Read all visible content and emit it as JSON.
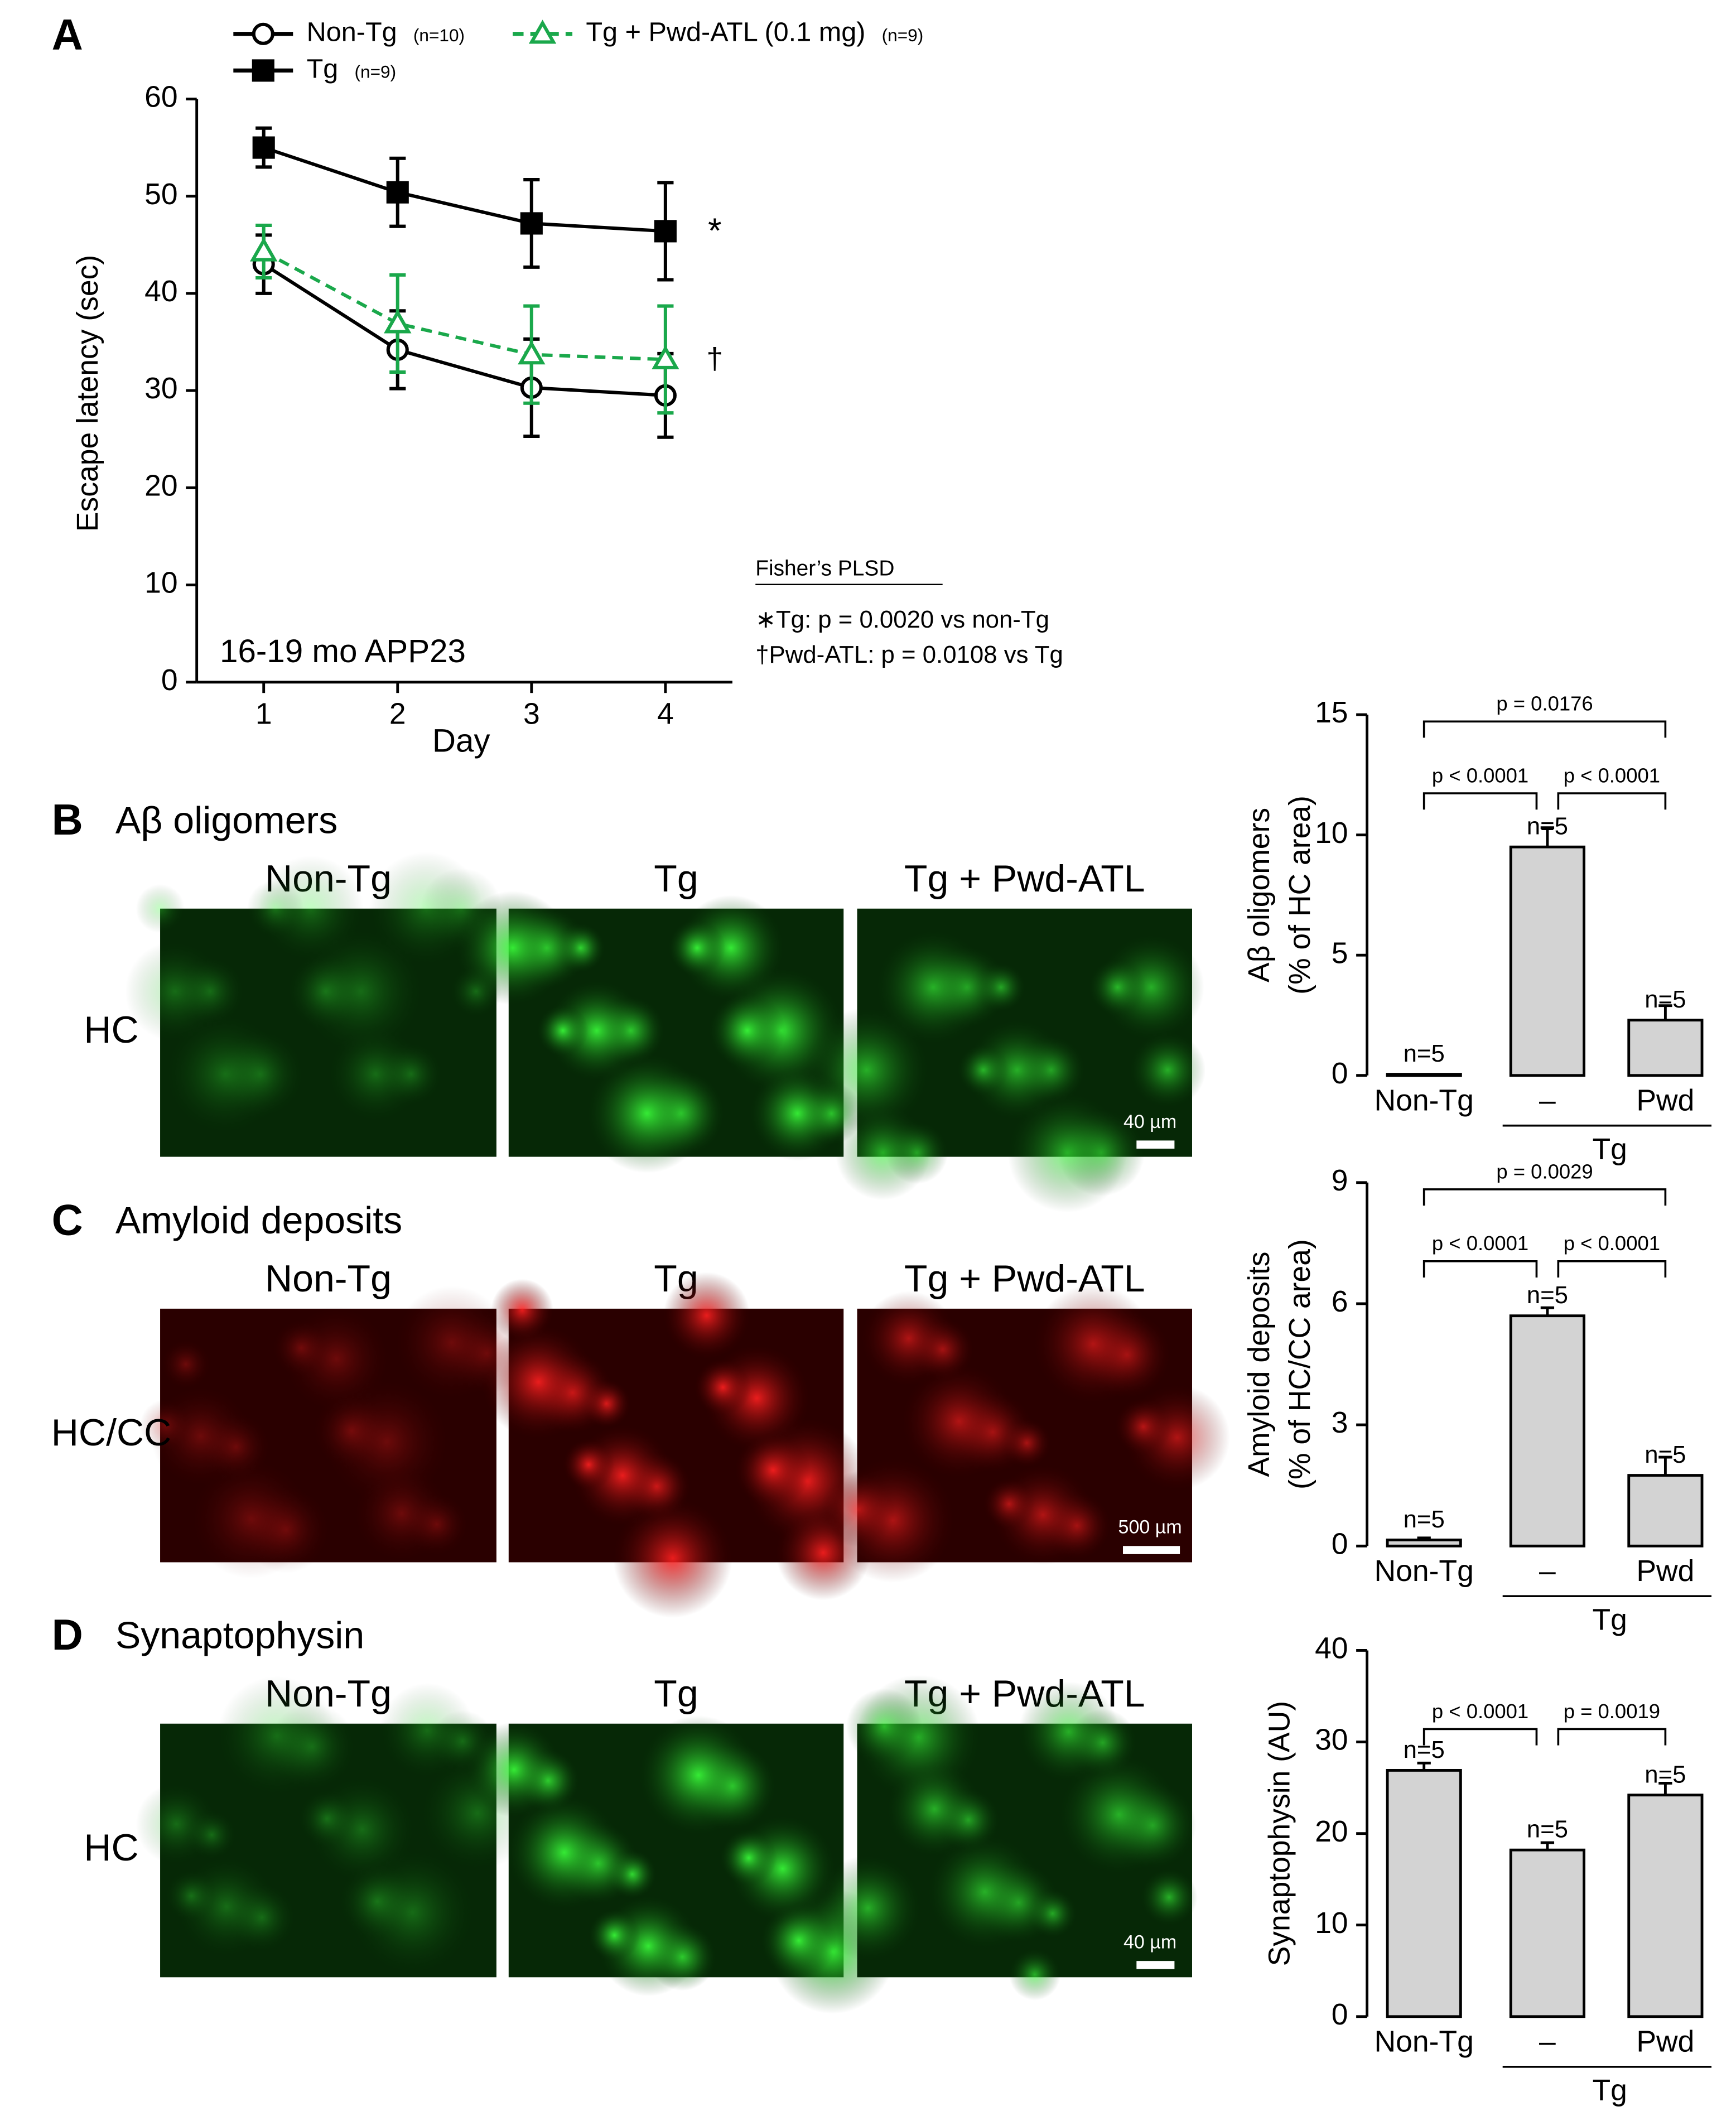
{
  "chart_data": [
    {
      "type": "line",
      "panel_label": "A",
      "xlabel": "Day",
      "ylabel": "Escape latency (sec)",
      "x": [
        1,
        2,
        3,
        4
      ],
      "xlim": [
        0.5,
        4.5
      ],
      "xticks": [
        1,
        2,
        3,
        4
      ],
      "ylim": [
        0,
        60
      ],
      "yticks": [
        0,
        10,
        20,
        30,
        40,
        50,
        60
      ],
      "series": [
        {
          "name": "Non-Tg",
          "n_label": "(n=10)",
          "color": "#000000",
          "marker": "circle",
          "dashed": false,
          "values": [
            43,
            34.2,
            30.3,
            29.5
          ],
          "errors": [
            3,
            4,
            5,
            4.3
          ]
        },
        {
          "name": "Tg",
          "n_label": "(n=9)",
          "color": "#000000",
          "marker": "square",
          "dashed": false,
          "values": [
            55,
            50.4,
            47.2,
            46.4
          ],
          "errors": [
            2,
            3.5,
            4.5,
            5
          ]
        },
        {
          "name": "Tg + Pwd-ATL (0.1 mg)",
          "n_label": "(n=9)",
          "color": "#1aa84b",
          "marker": "triangle",
          "dashed": true,
          "values": [
            44.3,
            36.9,
            33.7,
            33.2
          ],
          "errors": [
            2.7,
            5,
            5,
            5.5
          ]
        }
      ],
      "annotations": [
        "*",
        "†",
        "16-19 mo APP23"
      ],
      "note_title": "Fisher’s PLSD",
      "notes": [
        "∗Tg: p = 0.0020 vs non-Tg",
        "†Pwd-ATL: p = 0.0108 vs Tg"
      ]
    },
    {
      "type": "bar",
      "ylabel": [
        "Aβ oligomers",
        "(% of HC area)"
      ],
      "categories": [
        "Non-Tg",
        "–",
        "Pwd"
      ],
      "group_label": "Tg",
      "values": [
        0.05,
        9.5,
        2.3
      ],
      "errors": [
        0,
        0.8,
        0.6
      ],
      "n_labels": [
        "n=5",
        "n=5",
        "n=5"
      ],
      "color": "#d3d3d3",
      "ylim": [
        0,
        15
      ],
      "yticks": [
        0,
        5,
        10,
        15
      ],
      "comparisons": [
        {
          "label": "p = 0.0176",
          "pair": [
            "Non-Tg",
            "Pwd"
          ]
        },
        {
          "label": "p < 0.0001",
          "pair": [
            "Non-Tg",
            "–"
          ]
        },
        {
          "label": "p < 0.0001",
          "pair": [
            "–",
            "Pwd"
          ]
        }
      ]
    },
    {
      "type": "bar",
      "ylabel": [
        "Amyloid deposits",
        "(% of HC/CC area)"
      ],
      "categories": [
        "Non-Tg",
        "–",
        "Pwd"
      ],
      "group_label": "Tg",
      "values": [
        0.15,
        5.7,
        1.75
      ],
      "errors": [
        0.05,
        0.2,
        0.45
      ],
      "n_labels": [
        "n=5",
        "n=5",
        "n=5"
      ],
      "color": "#d3d3d3",
      "ylim": [
        0,
        9
      ],
      "yticks": [
        0,
        3,
        6,
        9
      ],
      "comparisons": [
        {
          "label": "p = 0.0029",
          "pair": [
            "Non-Tg",
            "Pwd"
          ]
        },
        {
          "label": "p < 0.0001",
          "pair": [
            "Non-Tg",
            "–"
          ]
        },
        {
          "label": "p < 0.0001",
          "pair": [
            "–",
            "Pwd"
          ]
        }
      ]
    },
    {
      "type": "bar",
      "ylabel": [
        "Synaptophysin (AU)"
      ],
      "categories": [
        "Non-Tg",
        "–",
        "Pwd"
      ],
      "group_label": "Tg",
      "values": [
        26.9,
        18.2,
        24.2
      ],
      "errors": [
        0.8,
        0.8,
        1.3
      ],
      "n_labels": [
        "n=5",
        "n=5",
        "n=5"
      ],
      "color": "#d3d3d3",
      "ylim": [
        0,
        40
      ],
      "yticks": [
        0,
        10,
        20,
        30,
        40
      ],
      "comparisons": [
        {
          "label": "p < 0.0001",
          "pair": [
            "Non-Tg",
            "–"
          ]
        },
        {
          "label": "p = 0.0019",
          "pair": [
            "–",
            "Pwd"
          ]
        }
      ]
    }
  ],
  "micrographs": [
    {
      "panel_label": "B",
      "title": "Aβ oligomers",
      "columns": [
        "Non-Tg",
        "Tg",
        "Tg + Pwd-ATL"
      ],
      "row_label": "HC",
      "scale_bar": "40 µm",
      "color": "#22c22a"
    },
    {
      "panel_label": "C",
      "title": "Amyloid deposits",
      "columns": [
        "Non-Tg",
        "Tg",
        "Tg + Pwd-ATL"
      ],
      "row_label": "HC/CC",
      "scale_bar": "500 µm",
      "color": "#e01010"
    },
    {
      "panel_label": "D",
      "title": "Synaptophysin",
      "columns": [
        "Non-Tg",
        "Tg",
        "Tg + Pwd-ATL"
      ],
      "row_label": "HC",
      "scale_bar": "40 µm",
      "color": "#2fd42a"
    }
  ]
}
